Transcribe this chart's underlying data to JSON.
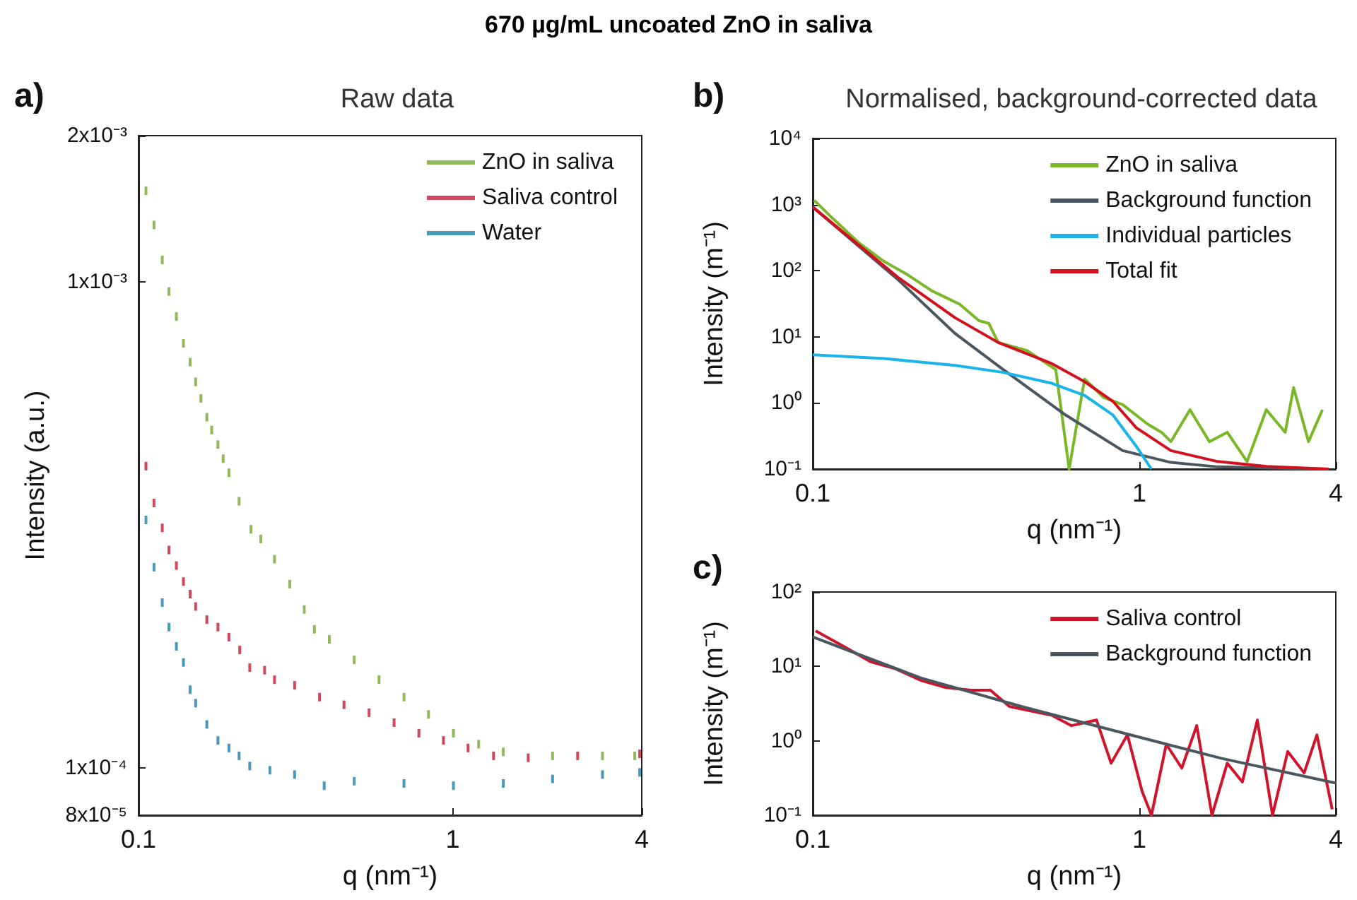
{
  "chart_data": [
    {
      "type": "scatter",
      "title": "Raw data",
      "xlabel": "q (nm⁻¹)",
      "ylabel": "Intensity (a.u.)",
      "annotations": [
        "a)",
        "670 µg/mL uncoated ZnO in saliva"
      ],
      "log": "xy",
      "xlim": [
        0.1,
        4
      ],
      "xticks": [
        0.1,
        1,
        4
      ],
      "ylim": [
        8e-05,
        0.002
      ],
      "yticks": [
        {
          "value": 8e-05,
          "label": "8x10⁻⁵"
        },
        {
          "value": 0.0001,
          "label": "1x10⁻⁴"
        },
        {
          "value": 0.001,
          "label": "1x10⁻³"
        },
        {
          "value": 0.002,
          "label": "2x10⁻³"
        }
      ],
      "grid": false,
      "legend": "top right",
      "marker": "square",
      "series": [
        {
          "name": "ZnO in saliva",
          "color": "#76a830",
          "x": [
            0.1056,
            0.112,
            0.119,
            0.125,
            0.132,
            0.139,
            0.146,
            0.152,
            0.158,
            0.165,
            0.171,
            0.179,
            0.186,
            0.194,
            0.209,
            0.228,
            0.245,
            0.271,
            0.303,
            0.337,
            0.363,
            0.405,
            0.486,
            0.583,
            0.7,
            0.838,
            1.006,
            1.21,
            1.45,
            2.08,
            3.0,
            3.8
          ],
          "values": [
            0.00154,
            0.00131,
            0.00111,
            0.000956,
            0.000849,
            0.000748,
            0.000684,
            0.000623,
            0.000576,
            0.000527,
            0.000496,
            0.000463,
            0.000433,
            0.000405,
            0.000354,
            0.00031,
            0.000296,
            0.000269,
            0.000239,
            0.000212,
            0.000193,
            0.000184,
            0.000167,
            0.000152,
            0.00014,
            0.000129,
            0.000118,
            0.000112,
            0.000108,
            0.000106,
            0.000106,
            0.000106
          ]
        },
        {
          "name": "Saliva control",
          "color": "#c41a32",
          "x": [
            0.1056,
            0.112,
            0.119,
            0.125,
            0.132,
            0.139,
            0.146,
            0.152,
            0.165,
            0.179,
            0.194,
            0.21,
            0.226,
            0.252,
            0.271,
            0.314,
            0.377,
            0.451,
            0.542,
            0.651,
            0.781,
            0.935,
            1.12,
            1.35,
            1.74,
            2.5,
            3.94
          ],
          "values": [
            0.000418,
            0.000351,
            0.000312,
            0.000281,
            0.000261,
            0.000242,
            0.000228,
            0.000215,
            0.000202,
            0.000195,
            0.000186,
            0.000175,
            0.000161,
            0.000159,
            0.000152,
            0.000148,
            0.00014,
            0.000135,
            0.00013,
            0.000124,
            0.000118,
            0.000114,
            0.00011,
            0.000106,
            0.000105,
            0.000106,
            0.000107
          ]
        },
        {
          "name": "Water",
          "color": "#1a80a8",
          "x": [
            0.1056,
            0.112,
            0.119,
            0.125,
            0.132,
            0.139,
            0.146,
            0.152,
            0.165,
            0.179,
            0.194,
            0.209,
            0.226,
            0.262,
            0.314,
            0.39,
            0.486,
            0.7,
            1.006,
            1.45,
            2.08,
            3.0,
            3.94
          ],
          "values": [
            0.000324,
            0.000259,
            0.000219,
            0.000195,
            0.000178,
            0.000165,
            0.000145,
            0.000136,
            0.000123,
            0.000114,
            0.00011,
            0.000106,
            0.000101,
            9.9e-05,
            9.7e-05,
            9.2e-05,
            9.4e-05,
            9.3e-05,
            9.2e-05,
            9.3e-05,
            9.5e-05,
            9.7e-05,
            9.8e-05
          ]
        }
      ]
    },
    {
      "type": "line",
      "title": "Normalised, background-corrected data",
      "xlabel": "q (nm⁻¹)",
      "ylabel": "Intensity (m⁻¹)",
      "annotations": [
        "b)"
      ],
      "log": "xy",
      "xlim": [
        0.1,
        4
      ],
      "xticks": [
        0.1,
        1,
        4
      ],
      "ylim": [
        0.1,
        10000
      ],
      "yticks": [
        {
          "value": 0.1,
          "label": "10⁻¹"
        },
        {
          "value": 1,
          "label": "10⁰"
        },
        {
          "value": 10,
          "label": "10¹"
        },
        {
          "value": 100,
          "label": "10²"
        },
        {
          "value": 1000,
          "label": "10³"
        },
        {
          "value": 10000,
          "label": "10⁴"
        }
      ],
      "grid": false,
      "legend": "top right",
      "marker": "none",
      "series": [
        {
          "name": "ZnO in saliva",
          "color": "#7ab828",
          "x": [
            0.101,
            0.117,
            0.139,
            0.165,
            0.195,
            0.231,
            0.282,
            0.323,
            0.346,
            0.37,
            0.453,
            0.555,
            0.61,
            0.68,
            0.78,
            0.89,
            1.06,
            1.17,
            1.25,
            1.43,
            1.64,
            1.86,
            2.14,
            2.45,
            2.8,
            2.97,
            3.3,
            3.64
          ],
          "values": [
            1160,
            572,
            260,
            139,
            87,
            50,
            31,
            17.5,
            16,
            8.2,
            6.2,
            3.2,
            0.1,
            2.3,
            1.2,
            0.94,
            0.48,
            0.36,
            0.26,
            0.79,
            0.26,
            0.36,
            0.13,
            0.79,
            0.36,
            1.7,
            0.26,
            0.79
          ]
        },
        {
          "name": "Background function",
          "color": "#4a5660",
          "x": [
            0.1,
            0.182,
            0.273,
            0.383,
            0.594,
            0.89,
            1.25,
            1.74,
            3.8
          ],
          "values": [
            917,
            74,
            11.2,
            3.2,
            0.66,
            0.19,
            0.126,
            0.108,
            0.1
          ]
        },
        {
          "name": "Individual particles",
          "color": "#1ab4ea",
          "x": [
            0.1,
            0.165,
            0.273,
            0.383,
            0.536,
            0.68,
            0.83,
            0.98,
            1.09
          ],
          "values": [
            5.35,
            4.7,
            3.7,
            2.9,
            2.0,
            1.3,
            0.66,
            0.22,
            0.1
          ]
        },
        {
          "name": "Total fit",
          "color": "#d4101e",
          "x": [
            0.1,
            0.182,
            0.273,
            0.37,
            0.536,
            0.68,
            0.83,
            0.98,
            1.25,
            1.74,
            2.45,
            3.8
          ],
          "values": [
            917,
            80,
            19.4,
            8.2,
            4.0,
            2.1,
            1.06,
            0.42,
            0.19,
            0.13,
            0.11,
            0.1
          ]
        }
      ]
    },
    {
      "type": "line",
      "xlabel": "q (nm⁻¹)",
      "ylabel": "Intensity (m⁻¹)",
      "annotations": [
        "c)"
      ],
      "log": "xy",
      "xlim": [
        0.1,
        4
      ],
      "xticks": [
        0.1,
        1,
        4
      ],
      "ylim": [
        0.1,
        100
      ],
      "yticks": [
        {
          "value": 0.1,
          "label": "10⁻¹"
        },
        {
          "value": 1,
          "label": "10⁰"
        },
        {
          "value": 10,
          "label": "10¹"
        },
        {
          "value": 100,
          "label": "10²"
        }
      ],
      "grid": false,
      "legend": "top right",
      "marker": "none",
      "series": [
        {
          "name": "Saliva control",
          "color": "#d0142c",
          "x": [
            0.102,
            0.126,
            0.15,
            0.179,
            0.214,
            0.256,
            0.305,
            0.35,
            0.4,
            0.47,
            0.54,
            0.62,
            0.74,
            0.82,
            0.92,
            1.02,
            1.09,
            1.21,
            1.35,
            1.5,
            1.67,
            1.86,
            2.07,
            2.3,
            2.56,
            2.85,
            3.2,
            3.5,
            3.9
          ],
          "values": [
            30,
            18,
            11.6,
            9.3,
            6.5,
            5.2,
            4.8,
            4.8,
            2.9,
            2.5,
            2.2,
            1.6,
            1.9,
            0.5,
            1.2,
            0.21,
            0.1,
            0.9,
            0.43,
            1.6,
            0.1,
            0.5,
            0.28,
            1.9,
            0.1,
            0.72,
            0.37,
            1.2,
            0.12
          ]
        },
        {
          "name": "Background function",
          "color": "#4a5660",
          "x": [
            0.1,
            0.214,
            0.435,
            1,
            1.79,
            4
          ],
          "values": [
            24.9,
            7.0,
            2.9,
            1.12,
            0.58,
            0.27
          ]
        }
      ]
    }
  ]
}
